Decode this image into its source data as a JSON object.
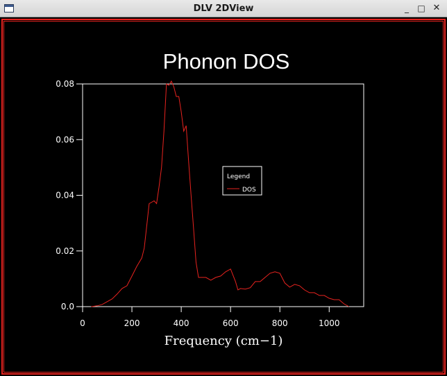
{
  "window": {
    "title": "DLV 2DView",
    "min_glyph": "_",
    "max_glyph": "□",
    "close_glyph": "✕"
  },
  "colors": {
    "background": "#000000",
    "frame": "#e8231f",
    "series": "#e8231f",
    "axes": "#ffffff"
  },
  "chart_data": {
    "type": "line",
    "title": "Phonon DOS",
    "xlabel": "Frequency (cm−1)",
    "ylabel": "",
    "xlim": [
      0,
      1140
    ],
    "ylim": [
      0,
      0.08
    ],
    "xticks": [
      0,
      200,
      400,
      600,
      800,
      1000
    ],
    "xtick_labels": [
      "0",
      "200",
      "400",
      "600",
      "800",
      "1000"
    ],
    "yticks": [
      0,
      0.02,
      0.04,
      0.06,
      0.08
    ],
    "ytick_labels": [
      "0.0",
      "0.02",
      "0.04",
      "0.06",
      "0.08"
    ],
    "grid": false,
    "legend": {
      "title": "Legend",
      "placement": "center-right"
    },
    "series": [
      {
        "name": "DOS",
        "color": "#e8231f",
        "x": [
          35,
          60,
          80,
          100,
          120,
          140,
          160,
          180,
          200,
          220,
          240,
          250,
          260,
          270,
          280,
          290,
          300,
          310,
          320,
          330,
          340,
          350,
          360,
          370,
          380,
          390,
          400,
          410,
          420,
          430,
          440,
          450,
          460,
          470,
          480,
          490,
          500,
          520,
          540,
          560,
          580,
          600,
          620,
          630,
          640,
          660,
          680,
          700,
          720,
          740,
          760,
          780,
          800,
          820,
          840,
          860,
          880,
          900,
          920,
          940,
          960,
          980,
          1000,
          1020,
          1040,
          1060,
          1080
        ],
        "y": [
          0.0,
          0.0003,
          0.0008,
          0.0018,
          0.0028,
          0.0045,
          0.0065,
          0.0075,
          0.011,
          0.0145,
          0.0175,
          0.021,
          0.029,
          0.037,
          0.0375,
          0.038,
          0.037,
          0.043,
          0.05,
          0.063,
          0.08,
          0.0795,
          0.081,
          0.079,
          0.0755,
          0.0755,
          0.07,
          0.063,
          0.065,
          0.052,
          0.04,
          0.028,
          0.016,
          0.0105,
          0.0105,
          0.0105,
          0.0105,
          0.0095,
          0.0105,
          0.011,
          0.0125,
          0.0135,
          0.009,
          0.006,
          0.0065,
          0.0063,
          0.0068,
          0.009,
          0.009,
          0.0105,
          0.012,
          0.0125,
          0.012,
          0.0085,
          0.007,
          0.008,
          0.0075,
          0.006,
          0.005,
          0.005,
          0.004,
          0.004,
          0.003,
          0.0025,
          0.0025,
          0.001,
          0.0
        ]
      }
    ]
  }
}
